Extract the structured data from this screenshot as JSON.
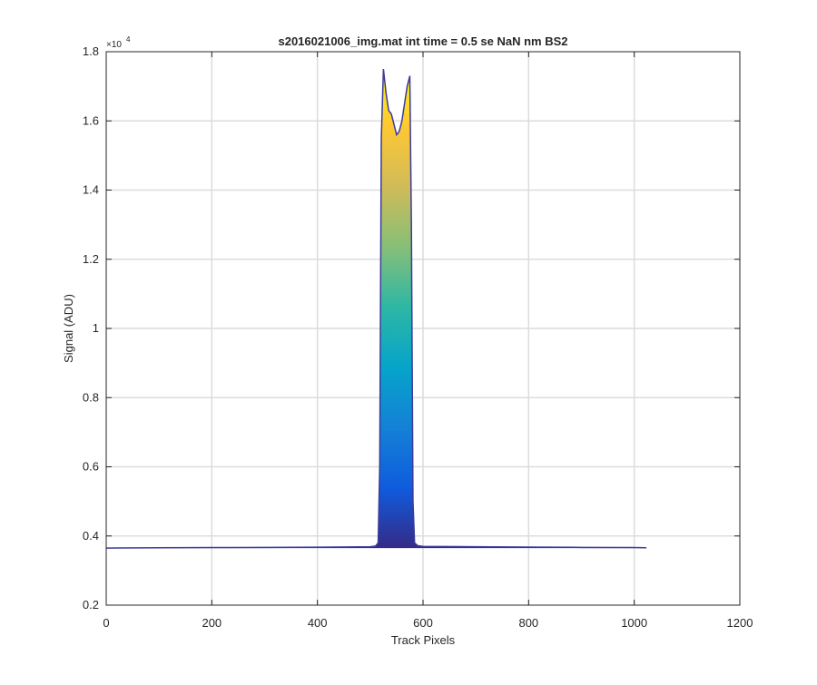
{
  "chart_data": {
    "type": "area",
    "title": "s2016021006_img.mat int time = 0.5 se  NaN nm BS2",
    "xlabel": "Track Pixels",
    "ylabel": "Signal (ADU)",
    "y_exponent_base": "×10",
    "y_exponent_power": "4",
    "xlim": [
      0,
      1200
    ],
    "ylim": [
      2000,
      18000
    ],
    "x_ticks": [
      0,
      200,
      400,
      600,
      800,
      1000,
      1200
    ],
    "x_tick_labels": [
      "0",
      "200",
      "400",
      "600",
      "800",
      "1000",
      "1200"
    ],
    "y_ticks": [
      2000,
      4000,
      6000,
      8000,
      10000,
      12000,
      14000,
      16000,
      18000
    ],
    "y_tick_labels": [
      "0.2",
      "0.4",
      "0.6",
      "0.8",
      "1",
      "1.2",
      "1.4",
      "1.6",
      "1.8"
    ],
    "grid": true,
    "colormap": [
      "#352a87",
      "#0f5cdd",
      "#1481d6",
      "#06a4ca",
      "#2eb7a4",
      "#87bf77",
      "#d1bb59",
      "#fec832",
      "#f9fb0e"
    ],
    "baseline_color": "#3b3b9a",
    "series": [
      {
        "x": [
          0,
          100,
          200,
          300,
          400,
          500,
          510,
          515,
          518,
          521,
          525,
          530,
          535,
          540,
          545,
          550,
          555,
          560,
          565,
          570,
          575,
          578,
          581,
          584,
          590,
          600,
          700,
          800,
          900,
          1000,
          1023
        ],
        "values": [
          3650,
          3660,
          3665,
          3670,
          3675,
          3690,
          3710,
          3800,
          6000,
          15500,
          17500,
          16800,
          16300,
          16200,
          15900,
          15600,
          15700,
          16000,
          16500,
          17000,
          17300,
          13000,
          5000,
          3800,
          3720,
          3700,
          3690,
          3680,
          3670,
          3665,
          3660
        ]
      }
    ]
  }
}
